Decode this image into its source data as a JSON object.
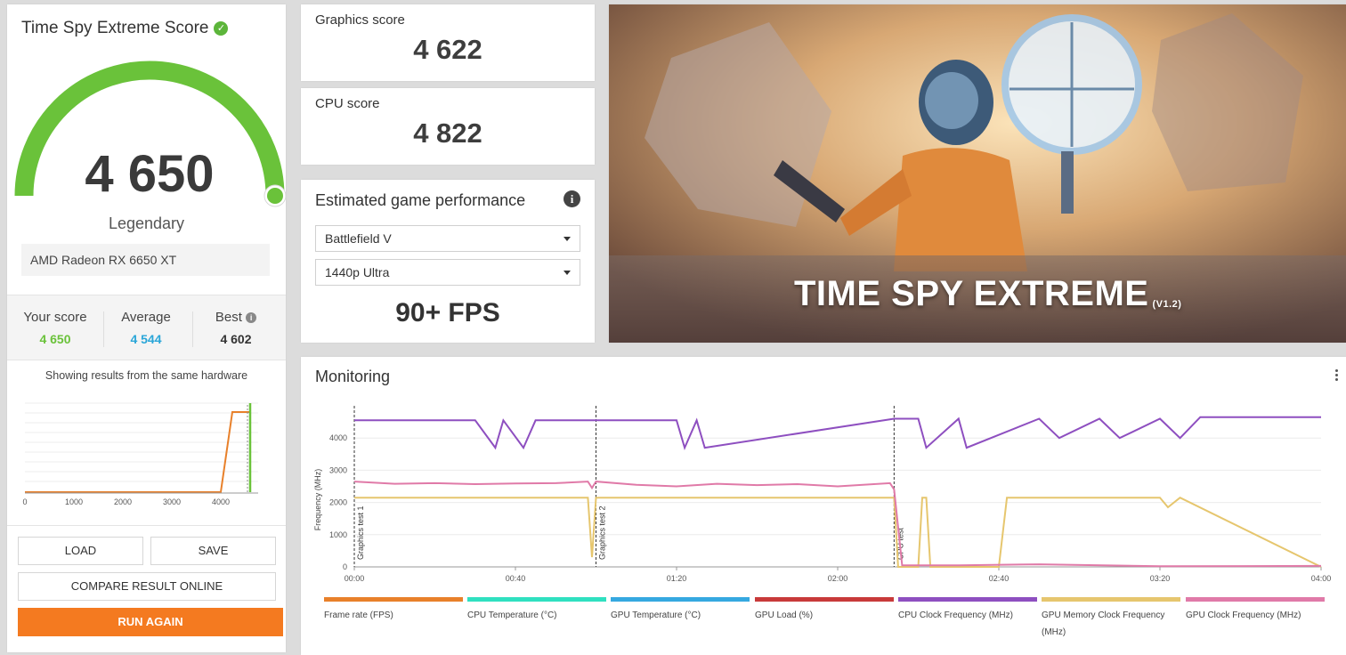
{
  "left_panel": {
    "title": "Time Spy Extreme Score",
    "score": "4 650",
    "score_value": 4650,
    "rating": "Legendary",
    "hardware": "AMD Radeon RX 6650 XT",
    "your_score_label": "Your score",
    "your_score": "4 650",
    "average_label": "Average",
    "average": "4 544",
    "best_label": "Best",
    "best": "4 602",
    "showing_text": "Showing results from the same hardware",
    "dist_x_ticks": [
      "0",
      "1000",
      "2000",
      "3000",
      "4000"
    ],
    "load_label": "LOAD",
    "save_label": "SAVE",
    "compare_label": "COMPARE RESULT ONLINE",
    "run_label": "RUN AGAIN",
    "colors": {
      "accent_green": "#6ac23a",
      "average_blue": "#2aa6d8",
      "run_orange": "#f47a20"
    }
  },
  "graphics": {
    "label": "Graphics score",
    "value": "4 622"
  },
  "cpu": {
    "label": "CPU score",
    "value": "4 822"
  },
  "estimate": {
    "title": "Estimated game performance",
    "game": "Battlefield V",
    "resolution": "1440p Ultra",
    "fps": "90+ FPS"
  },
  "hero": {
    "title": "TIME SPY EXTREME",
    "version": "(V1.2)"
  },
  "monitoring": {
    "title": "Monitoring",
    "y_label": "Frequency (MHz)",
    "y_ticks": [
      "0",
      "1000",
      "2000",
      "3000",
      "4000"
    ],
    "x_ticks": [
      "00:00",
      "00:40",
      "01:20",
      "02:00",
      "02:40",
      "03:20",
      "04:00"
    ],
    "markers": [
      "Graphics test 1",
      "Graphics test 2",
      "CPU test"
    ],
    "legend": [
      {
        "label": "Frame rate (FPS)",
        "color": "#e8802a"
      },
      {
        "label": "CPU Temperature (°C)",
        "color": "#2fe0c0"
      },
      {
        "label": "GPU Temperature (°C)",
        "color": "#35a8e0"
      },
      {
        "label": "GPU Load (%)",
        "color": "#c83a3a"
      },
      {
        "label": "CPU Clock Frequency (MHz)",
        "color": "#8e4fc0"
      },
      {
        "label": "GPU Memory Clock Frequency (MHz)",
        "color": "#e6c66e"
      },
      {
        "label": "GPU Clock Frequency (MHz)",
        "color": "#e07aa8"
      }
    ]
  },
  "chart_data": {
    "type": "line",
    "title": "Monitoring",
    "xlabel": "",
    "ylabel": "Frequency (MHz)",
    "xlim": [
      0,
      240
    ],
    "ylim": [
      0,
      5000
    ],
    "x_unit": "seconds",
    "markers": [
      {
        "name": "Graphics test 1",
        "x": 0
      },
      {
        "name": "Graphics test 2",
        "x": 60
      },
      {
        "name": "CPU test",
        "x": 134
      }
    ],
    "series": [
      {
        "name": "CPU Clock Frequency (MHz)",
        "x": [
          0,
          30,
          35,
          37,
          42,
          45,
          60,
          80,
          82,
          85,
          87,
          134,
          140,
          142,
          150,
          152,
          170,
          175,
          185,
          190,
          200,
          205,
          210,
          240
        ],
        "values": [
          4550,
          4550,
          3700,
          4550,
          3700,
          4550,
          4550,
          4550,
          3700,
          4550,
          3700,
          4600,
          4600,
          3700,
          4600,
          3700,
          4600,
          4000,
          4600,
          4000,
          4600,
          4000,
          4650,
          4650
        ]
      },
      {
        "name": "GPU Memory Clock Frequency (MHz)",
        "x": [
          0,
          58,
          59,
          60,
          134,
          135,
          140,
          141,
          142,
          143,
          160,
          162,
          200,
          202,
          205,
          240
        ],
        "values": [
          2150,
          2150,
          300,
          2150,
          2150,
          0,
          0,
          2150,
          2150,
          0,
          0,
          2150,
          2150,
          1850,
          2150,
          0
        ]
      },
      {
        "name": "GPU Clock Frequency (MHz)",
        "x": [
          0,
          10,
          20,
          30,
          40,
          50,
          58,
          59,
          60,
          70,
          80,
          90,
          100,
          110,
          120,
          133,
          134,
          136,
          150,
          170,
          200,
          240
        ],
        "values": [
          2650,
          2580,
          2600,
          2570,
          2590,
          2600,
          2650,
          2450,
          2650,
          2550,
          2500,
          2580,
          2540,
          2570,
          2500,
          2600,
          2400,
          50,
          50,
          80,
          20,
          30
        ]
      }
    ]
  }
}
